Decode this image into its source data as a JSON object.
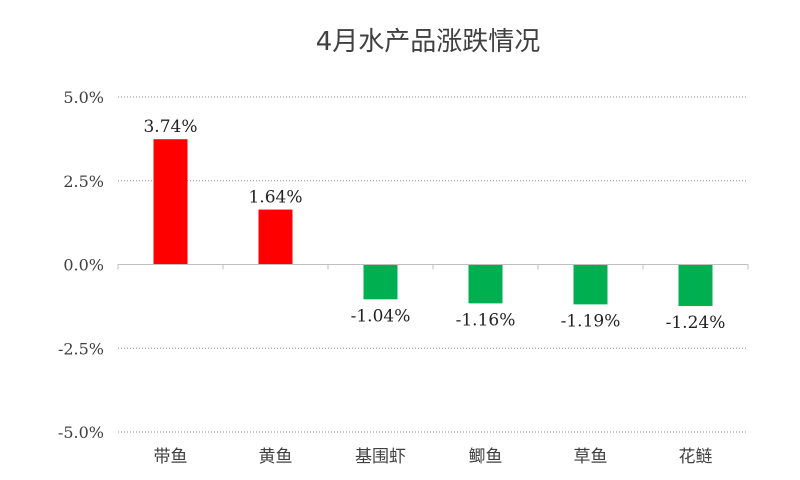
{
  "chart_data": {
    "type": "bar",
    "title": "4月水产品涨跌情况",
    "categories": [
      "带鱼",
      "黄鱼",
      "基围虾",
      "鲫鱼",
      "草鱼",
      "花鲢"
    ],
    "values": [
      3.74,
      1.64,
      -1.04,
      -1.16,
      -1.19,
      -1.24
    ],
    "value_labels": [
      "3.74%",
      "1.64%",
      "-1.04%",
      "-1.16%",
      "-1.19%",
      "-1.24%"
    ],
    "ylim": [
      -5.0,
      5.0
    ],
    "yticks": [
      5.0,
      2.5,
      0.0,
      -2.5,
      -5.0
    ],
    "ytick_labels": [
      "5.0%",
      "2.5%",
      "0.0%",
      "-2.5%",
      "-5.0%"
    ],
    "xlabel": "",
    "ylabel": "",
    "grid": true,
    "legend": "none",
    "colors": {
      "positive": "#ff0000",
      "negative": "#00b050"
    }
  }
}
